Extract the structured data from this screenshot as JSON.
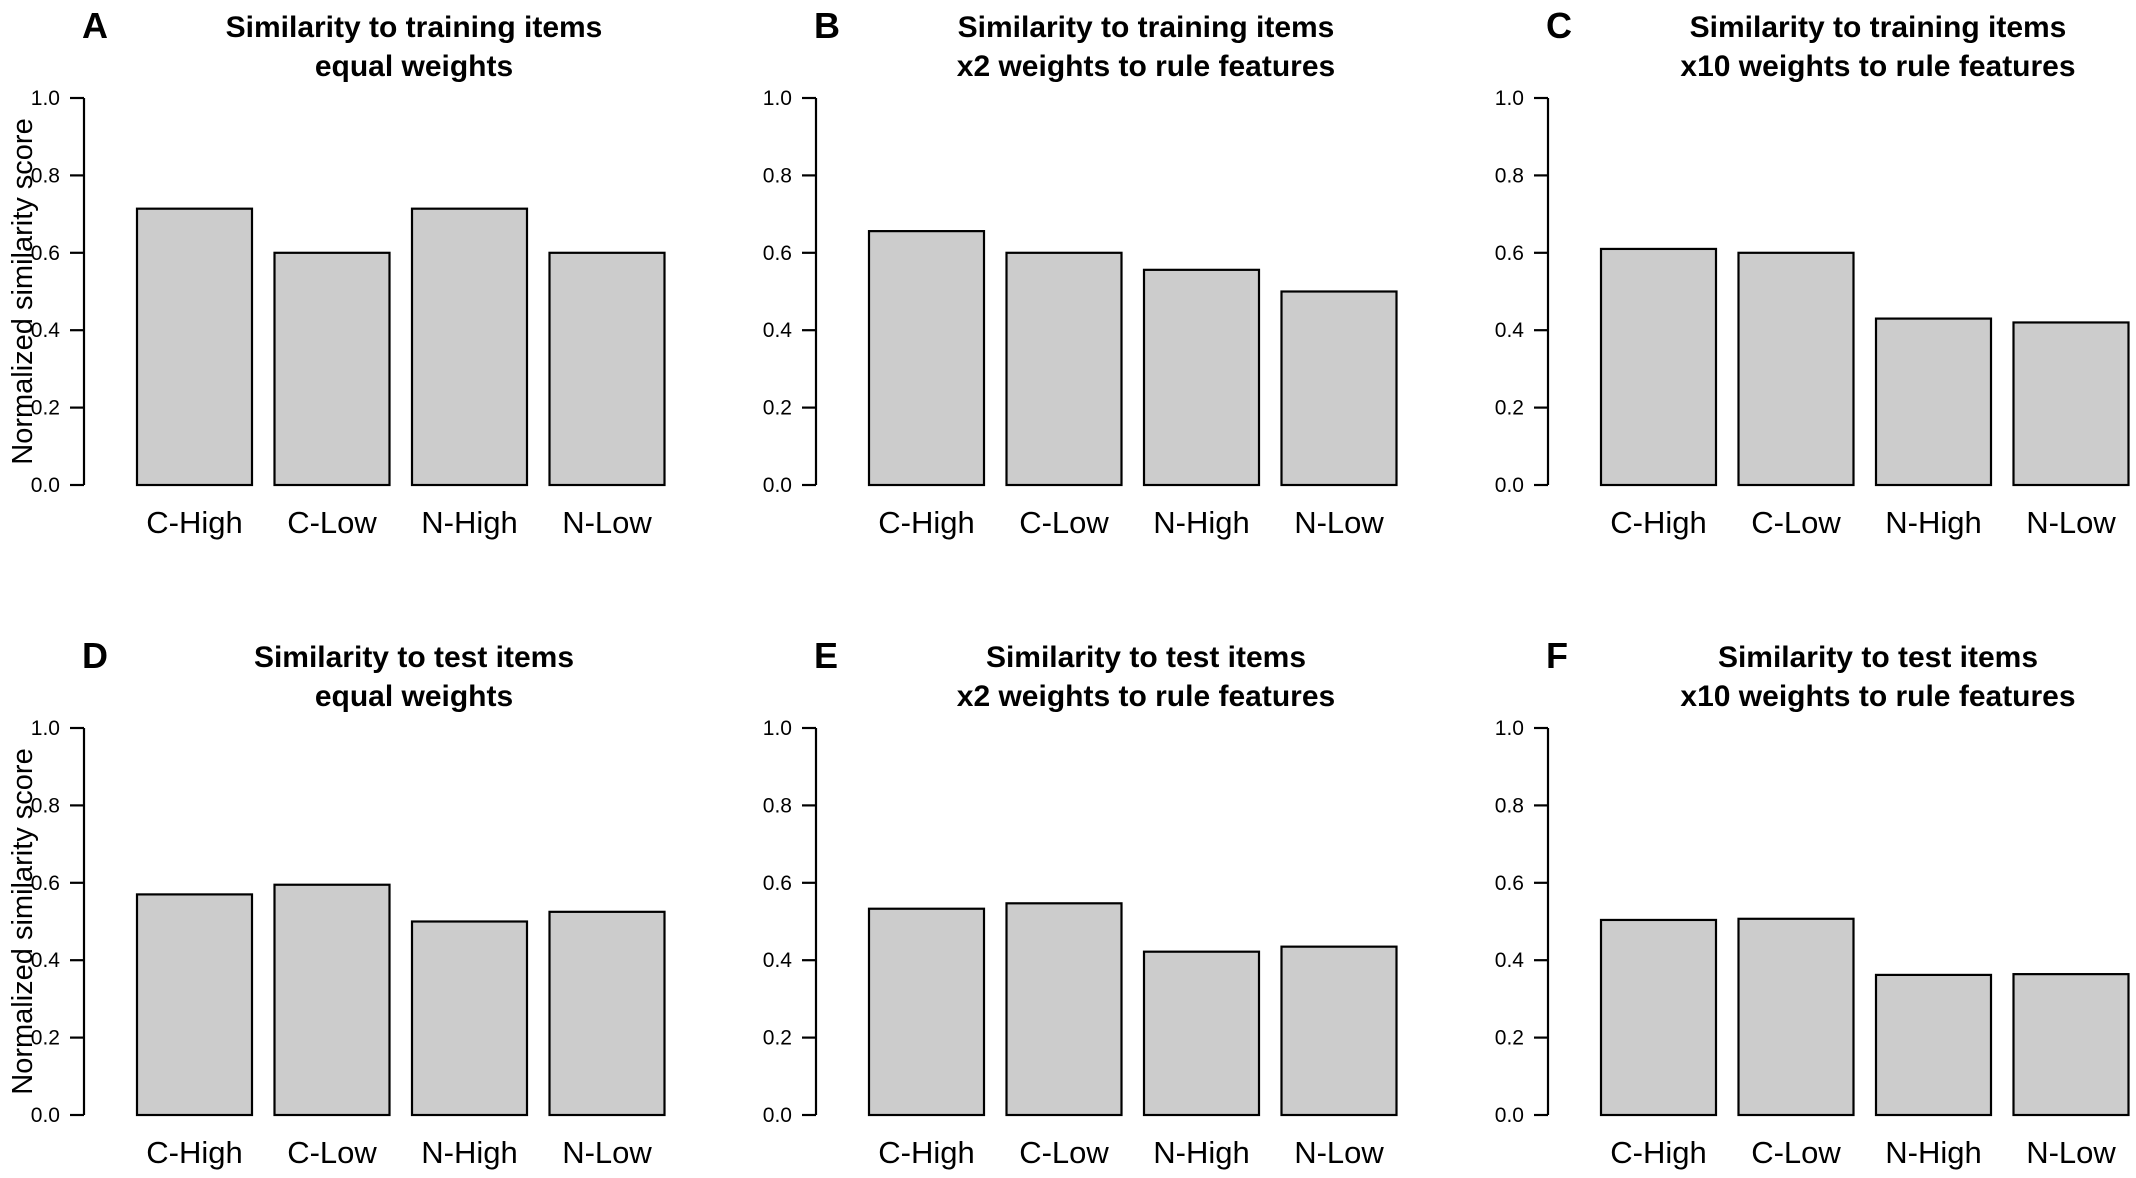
{
  "chart_data": [
    {
      "panel": "A",
      "type": "bar",
      "title": [
        "Similarity to training items",
        "equal weights"
      ],
      "ylabel": "Normalized similarity score",
      "ylim": [
        0,
        1
      ],
      "yticks": [
        "0.0",
        "0.2",
        "0.4",
        "0.6",
        "0.8",
        "1.0"
      ],
      "categories": [
        "C-High",
        "C-Low",
        "N-High",
        "N-Low"
      ],
      "values": [
        0.714,
        0.6,
        0.714,
        0.6
      ]
    },
    {
      "panel": "B",
      "type": "bar",
      "title": [
        "Similarity to training items",
        "x2 weights to rule features"
      ],
      "ylabel": "",
      "ylim": [
        0,
        1
      ],
      "yticks": [
        "0.0",
        "0.2",
        "0.4",
        "0.6",
        "0.8",
        "1.0"
      ],
      "categories": [
        "C-High",
        "C-Low",
        "N-High",
        "N-Low"
      ],
      "values": [
        0.656,
        0.6,
        0.556,
        0.5
      ]
    },
    {
      "panel": "C",
      "type": "bar",
      "title": [
        "Similarity to training items",
        "x10 weights to rule features"
      ],
      "ylabel": "",
      "ylim": [
        0,
        1
      ],
      "yticks": [
        "0.0",
        "0.2",
        "0.4",
        "0.6",
        "0.8",
        "1.0"
      ],
      "categories": [
        "C-High",
        "C-Low",
        "N-High",
        "N-Low"
      ],
      "values": [
        0.61,
        0.6,
        0.43,
        0.42
      ]
    },
    {
      "panel": "D",
      "type": "bar",
      "title": [
        "Similarity to test items",
        "equal weights"
      ],
      "ylabel": "Normalized similarity score",
      "ylim": [
        0,
        1
      ],
      "yticks": [
        "0.0",
        "0.2",
        "0.4",
        "0.6",
        "0.8",
        "1.0"
      ],
      "categories": [
        "C-High",
        "C-Low",
        "N-High",
        "N-Low"
      ],
      "values": [
        0.57,
        0.595,
        0.5,
        0.525
      ]
    },
    {
      "panel": "E",
      "type": "bar",
      "title": [
        "Similarity to test items",
        "x2 weights to rule features"
      ],
      "ylabel": "",
      "ylim": [
        0,
        1
      ],
      "yticks": [
        "0.0",
        "0.2",
        "0.4",
        "0.6",
        "0.8",
        "1.0"
      ],
      "categories": [
        "C-High",
        "C-Low",
        "N-High",
        "N-Low"
      ],
      "values": [
        0.533,
        0.547,
        0.422,
        0.435
      ]
    },
    {
      "panel": "F",
      "type": "bar",
      "title": [
        "Similarity to test items",
        "x10 weights to rule features"
      ],
      "ylabel": "",
      "ylim": [
        0,
        1
      ],
      "yticks": [
        "0.0",
        "0.2",
        "0.4",
        "0.6",
        "0.8",
        "1.0"
      ],
      "categories": [
        "C-High",
        "C-Low",
        "N-High",
        "N-Low"
      ],
      "values": [
        0.504,
        0.507,
        0.362,
        0.364
      ]
    }
  ]
}
